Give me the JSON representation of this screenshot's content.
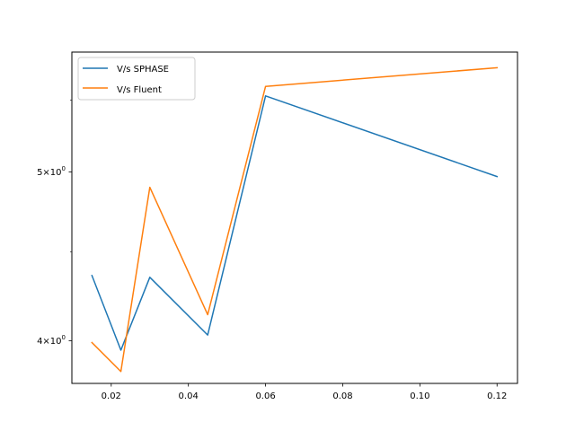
{
  "chart_data": {
    "type": "line",
    "title": "",
    "xlabel": "",
    "ylabel": "",
    "yscale": "log",
    "xlim": [
      0.0098,
      0.1253
    ],
    "ylim": [
      3.78,
      5.86
    ],
    "grid": false,
    "legend_position": "top-left",
    "x_ticks": [
      {
        "value": 0.02,
        "label": "0.02"
      },
      {
        "value": 0.04,
        "label": "0.04"
      },
      {
        "value": 0.06,
        "label": "0.06"
      },
      {
        "value": 0.08,
        "label": "0.08"
      },
      {
        "value": 0.1,
        "label": "0.10"
      },
      {
        "value": 0.12,
        "label": "0.12"
      }
    ],
    "y_ticks": [
      {
        "value": 4,
        "base": "4",
        "mult": "×",
        "power": "10",
        "exp": "0"
      },
      {
        "value": 5,
        "base": "5",
        "mult": "×",
        "power": "10",
        "exp": "0"
      }
    ],
    "x": [
      0.015,
      0.0225,
      0.03,
      0.045,
      0.06,
      0.12
    ],
    "series": [
      {
        "name": "V/s SPHASE",
        "color": "#1f77b4",
        "values": [
          4.36,
          3.95,
          4.35,
          4.03,
          5.53,
          4.97
        ]
      },
      {
        "name": "V/s Fluent",
        "color": "#ff7f0e",
        "values": [
          3.99,
          3.84,
          4.9,
          4.14,
          5.6,
          5.74
        ]
      }
    ]
  }
}
